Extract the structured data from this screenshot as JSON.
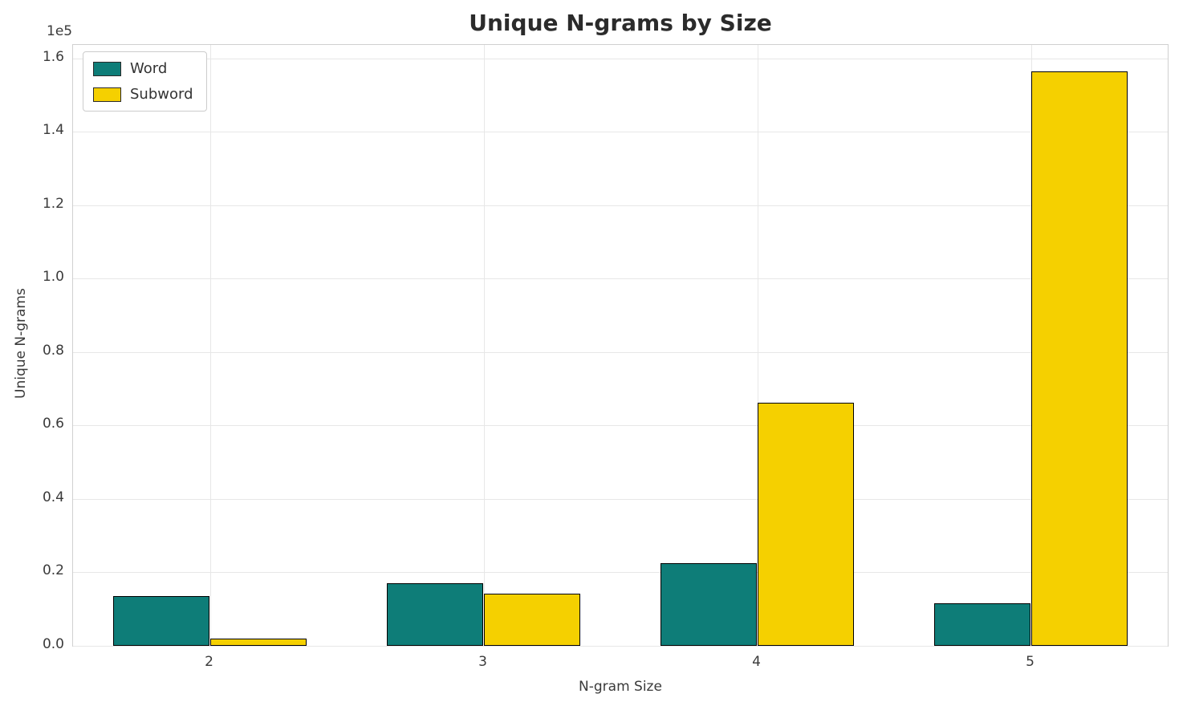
{
  "chart_data": {
    "type": "bar",
    "title": "Unique N-grams by Size",
    "xlabel": "N-gram Size",
    "ylabel": "Unique N-grams",
    "y_offset_label": "1e5",
    "categories": [
      "2",
      "3",
      "4",
      "5"
    ],
    "series": [
      {
        "name": "Word",
        "color": "#0e7d78",
        "values": [
          13500,
          17000,
          22500,
          11600
        ]
      },
      {
        "name": "Subword",
        "color": "#f5d000",
        "values": [
          2000,
          14200,
          66300,
          156500
        ]
      }
    ],
    "ylim": [
      0,
      163700
    ],
    "yticks": [
      0,
      20000,
      40000,
      60000,
      80000,
      100000,
      120000,
      140000,
      160000
    ],
    "ytick_labels": [
      "0.0",
      "0.2",
      "0.4",
      "0.6",
      "0.8",
      "1.0",
      "1.2",
      "1.4",
      "1.6"
    ],
    "grid": true,
    "legend_position": "upper-left",
    "bar_edge_color": "#000000",
    "background": "#ffffff"
  }
}
